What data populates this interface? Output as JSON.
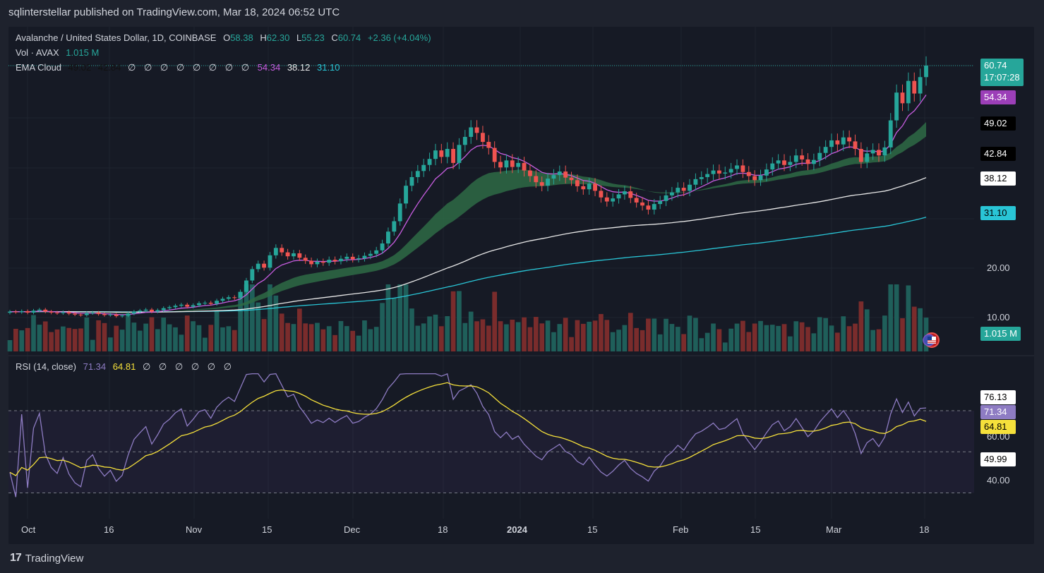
{
  "header": {
    "publisher": "sqlinterstellar published on TradingView.com, Mar 18, 2024 06:52 UTC"
  },
  "legend": {
    "symbol": "Avalanche / United States Dollar, 1D, COINBASE",
    "o_label": "O",
    "o": "58.38",
    "h_label": "H",
    "h": "62.30",
    "l_label": "L",
    "l": "55.23",
    "c_label": "C",
    "c": "60.74",
    "change": "+2.36 (+4.04%)",
    "vol_label": "Vol · AVAX",
    "vol": "1.015 M",
    "ema_label": "EMA Cloud",
    "ema_v1": "49.02",
    "ema_v2": "42.84",
    "empty_glyph": "∅",
    "ema_v3": "54.34",
    "ema_v4": "38.12",
    "ema_v5": "31.10",
    "rsi_label": "RSI (14, close)",
    "rsi_v1": "71.34",
    "rsi_v2": "64.81"
  },
  "price_axis": {
    "ticks": [
      "20.00",
      "10.00"
    ],
    "labels": {
      "last_price": "60.74",
      "countdown": "17:07:28",
      "ema_fast": "54.34",
      "ema_a": "49.02",
      "ema_b": "42.84",
      "ema_slow1": "38.12",
      "ema_slow2": "31.10",
      "volume": "1.015 M"
    }
  },
  "rsi_axis": {
    "ticks": [
      "60.00",
      "40.00"
    ],
    "labels": {
      "rsi_high": "76.13",
      "rsi": "71.34",
      "rsi_ma": "64.81",
      "rsi_low": "49.99"
    }
  },
  "time_axis": [
    "Oct",
    "16",
    "Nov",
    "15",
    "Dec",
    "18",
    "2024",
    "15",
    "Feb",
    "15",
    "Mar",
    "18"
  ],
  "footer": {
    "brand": "TradingView",
    "mark": "17"
  },
  "colors": {
    "bg": "#161a25",
    "up": "#26a69a",
    "down": "#ef5350",
    "ema_fast": "#c75de0",
    "ema_slow1": "#e8e8e8",
    "ema_slow2": "#29c5d6",
    "cloud": "#2e6b45",
    "rsi": "#8e7cc3",
    "rsi_ma": "#f5e03b"
  },
  "chart_data": {
    "type": "candlestick",
    "title": "Avalanche / United States Dollar, 1D, COINBASE",
    "ylim": [
      5,
      66
    ],
    "closes": [
      11.2,
      11.1,
      11.3,
      11.0,
      11.4,
      11.6,
      11.2,
      11.0,
      10.9,
      11.1,
      10.8,
      10.6,
      10.5,
      10.9,
      11.0,
      10.7,
      10.5,
      10.6,
      10.3,
      10.4,
      10.8,
      11.2,
      11.4,
      11.6,
      11.2,
      11.5,
      11.9,
      12.1,
      12.4,
      12.6,
      12.2,
      12.5,
      12.9,
      13.0,
      12.8,
      13.4,
      13.8,
      14.1,
      14.0,
      15.2,
      17.5,
      19.8,
      20.9,
      20.1,
      22.6,
      24.1,
      23.2,
      22.4,
      23.0,
      22.1,
      21.5,
      20.8,
      21.3,
      21.1,
      21.7,
      21.4,
      21.9,
      22.3,
      21.8,
      22.0,
      22.5,
      22.9,
      23.6,
      25.0,
      27.4,
      29.5,
      33.0,
      36.5,
      38.2,
      39.4,
      40.6,
      41.8,
      43.5,
      42.2,
      43.8,
      41.0,
      44.6,
      46.2,
      48.1,
      47.0,
      45.2,
      44.0,
      41.2,
      40.1,
      41.5,
      40.2,
      41.0,
      39.5,
      38.4,
      37.2,
      36.5,
      37.9,
      38.6,
      39.3,
      38.1,
      37.6,
      36.4,
      35.8,
      36.9,
      35.5,
      34.2,
      33.4,
      34.0,
      34.8,
      35.4,
      34.1,
      33.2,
      32.6,
      31.8,
      32.9,
      33.5,
      34.6,
      35.2,
      36.1,
      35.5,
      36.7,
      37.8,
      38.2,
      38.8,
      39.5,
      38.9,
      39.1,
      39.8,
      40.5,
      39.2,
      38.4,
      37.6,
      38.5,
      39.7,
      40.9,
      41.5,
      40.6,
      41.2,
      42.5,
      41.7,
      40.8,
      41.6,
      43.0,
      44.2,
      45.5,
      44.7,
      46.1,
      45.3,
      43.8,
      41.2,
      42.9,
      43.6,
      42.5,
      44.1,
      49.5,
      55.2,
      53.0,
      57.6,
      55.0,
      58.38,
      60.74
    ],
    "volume_scale": "relative",
    "ema_fast_value": 54.34,
    "ema_cloud": [
      49.02,
      42.84
    ],
    "ema_slow": [
      38.12,
      31.1
    ],
    "rsi": {
      "series": [
        {
          "name": "RSI",
          "last": 71.34
        },
        {
          "name": "RSI MA",
          "last": 64.81
        }
      ],
      "bands": [
        70,
        50,
        30
      ],
      "ylim": [
        25,
        92
      ]
    }
  }
}
